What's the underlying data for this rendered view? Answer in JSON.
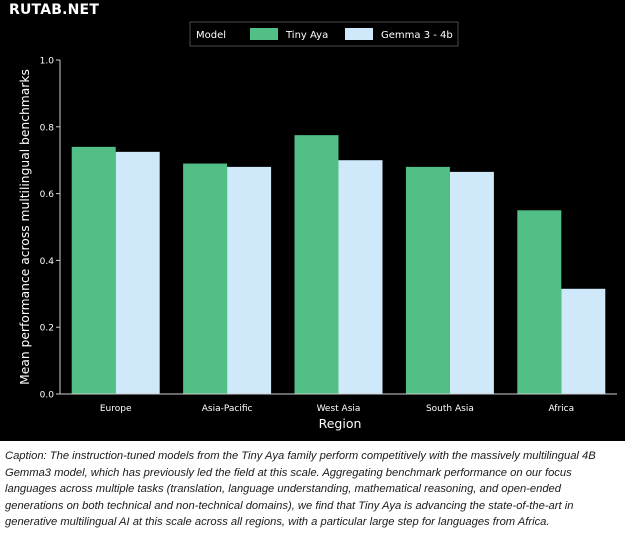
{
  "watermark": "RUTAB.NET",
  "chart_data": {
    "type": "bar",
    "xlabel": "Region",
    "ylabel": "Mean performance across multilingual benchmarks",
    "categories": [
      "Europe",
      "Asia-Pacific",
      "West Asia",
      "South Asia",
      "Africa"
    ],
    "series": [
      {
        "name": "Tiny Aya",
        "color": "#52bf87",
        "values": [
          0.74,
          0.69,
          0.775,
          0.68,
          0.55
        ]
      },
      {
        "name": "Gemma 3 - 4b",
        "color": "#cfe9fb",
        "values": [
          0.725,
          0.68,
          0.7,
          0.665,
          0.315
        ]
      }
    ],
    "ylim": [
      0,
      1.0
    ],
    "yticks": [
      "0.0",
      "0.2",
      "0.4",
      "0.6",
      "0.8",
      "1.0"
    ],
    "legend": {
      "title": "Model",
      "position": "top-center"
    },
    "background": "#000000",
    "grid": false
  },
  "caption": "Caption: The instruction-tuned models from the Tiny Aya family perform competitively with the massively multilingual 4B Gemma3 model, which has previously led the field at this scale. Aggregating benchmark performance on our focus languages across multiple tasks (translation, language understanding, mathematical reasoning, and open-ended generations on both technical and non-technical domains), we find that Tiny Aya is advancing the state-of-the-art in generative multilingual AI at this scale across all regions, with a particular large step for languages from Africa."
}
